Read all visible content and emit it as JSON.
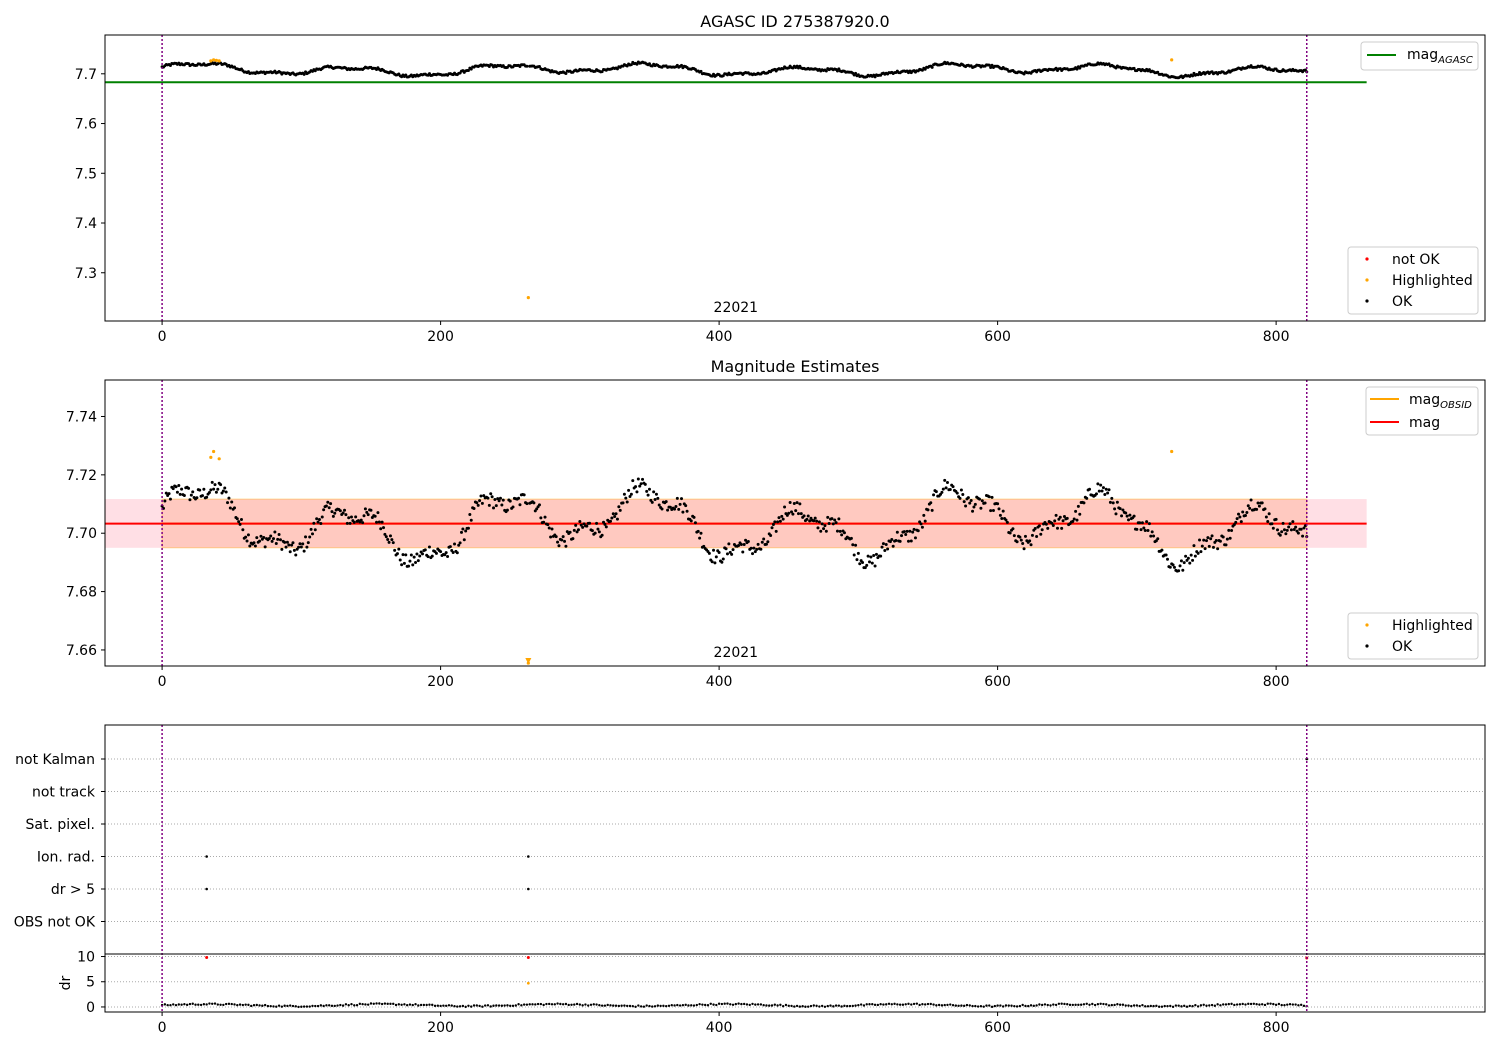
{
  "chart_data": [
    {
      "type": "scatter",
      "title": "AGASC ID 275387920.0",
      "xlim": [
        -41,
        950
      ],
      "ylim": [
        7.203,
        7.778
      ],
      "xticks": [
        "0",
        "200",
        "400",
        "600",
        "800"
      ],
      "xtick_values": [
        0,
        200,
        400,
        600,
        800
      ],
      "yticks": [
        "7.3",
        "7.4",
        "7.5",
        "7.6",
        "7.7"
      ],
      "ytick_values": [
        7.3,
        7.4,
        7.5,
        7.6,
        7.7
      ],
      "obsid_label": "22021",
      "obsid_x": 412,
      "obs_boundaries": [
        0,
        822
      ],
      "mag_agasc": 7.683,
      "legend_lines": [
        {
          "label": "mag",
          "sub": "AGASC",
          "color": "#008000"
        }
      ],
      "legend_points": [
        {
          "label": "not OK",
          "color": "#ff0000"
        },
        {
          "label": "Highlighted",
          "color": "#ffa500"
        },
        {
          "label": "OK",
          "color": "#000000"
        }
      ],
      "highlighted_points": [
        [
          35,
          7.726
        ],
        [
          37,
          7.728
        ],
        [
          39,
          7.727
        ],
        [
          41,
          7.726
        ],
        [
          263,
          7.25
        ],
        [
          725,
          7.728
        ]
      ],
      "ok_series": {
        "x_start": 0,
        "x_end": 822,
        "mean": 7.703,
        "amp": 0.009
      }
    },
    {
      "type": "scatter",
      "title": "Magnitude Estimates",
      "xlim": [
        -41,
        950
      ],
      "ylim": [
        7.6545,
        7.7525
      ],
      "xticks": [
        "0",
        "200",
        "400",
        "600",
        "800"
      ],
      "xtick_values": [
        0,
        200,
        400,
        600,
        800
      ],
      "yticks": [
        "7.66",
        "7.68",
        "7.70",
        "7.72",
        "7.74"
      ],
      "ytick_values": [
        7.66,
        7.68,
        7.7,
        7.72,
        7.74
      ],
      "obsid_label": "22021",
      "obsid_x": 412,
      "obs_boundaries": [
        0,
        822
      ],
      "mag": 7.7033,
      "mag_band": [
        7.695,
        7.7117
      ],
      "mag_obsid": 7.7033,
      "legend_lines": [
        {
          "label": "mag",
          "sub": "OBSID",
          "color": "#ffa500"
        },
        {
          "label": "mag",
          "sub": "",
          "color": "#ff0000"
        }
      ],
      "legend_points": [
        {
          "label": "Highlighted",
          "color": "#ffa500"
        },
        {
          "label": "OK",
          "color": "#000000"
        }
      ],
      "highlighted_points": [
        [
          35,
          7.726
        ],
        [
          37,
          7.728
        ],
        [
          41,
          7.7255
        ],
        [
          263,
          7.6555
        ],
        [
          725,
          7.728
        ]
      ],
      "ok_series": {
        "x_start": 0,
        "x_end": 822,
        "mean": 7.703,
        "amp": 0.009
      }
    },
    {
      "type": "scatter",
      "title": "",
      "xlim": [
        -41,
        950
      ],
      "xticks": [
        "0",
        "200",
        "400",
        "600",
        "800"
      ],
      "xtick_values": [
        0,
        200,
        400,
        600,
        800
      ],
      "flag_rows": [
        "not Kalman",
        "not track",
        "Sat. pixel.",
        "Ion. rad.",
        "dr > 5",
        "OBS not OK"
      ],
      "flag_points": [
        {
          "row": "Ion. rad.",
          "x": 32
        },
        {
          "row": "Ion. rad.",
          "x": 263
        },
        {
          "row": "dr > 5",
          "x": 32
        },
        {
          "row": "dr > 5",
          "x": 263
        },
        {
          "row": "not Kalman",
          "x": 822
        }
      ],
      "dr_ylabel": "dr",
      "dr_yticks": [
        "0",
        "5",
        "10"
      ],
      "dr_ytick_values": [
        0,
        5,
        10
      ],
      "dr_ylim": [
        -1,
        10.5
      ],
      "dr_red_points": [
        [
          32,
          9.8
        ],
        [
          263,
          9.8
        ],
        [
          822,
          9.7
        ]
      ],
      "dr_orange_points": [
        [
          263,
          4.7
        ]
      ],
      "obs_boundaries": [
        0,
        822
      ]
    }
  ]
}
